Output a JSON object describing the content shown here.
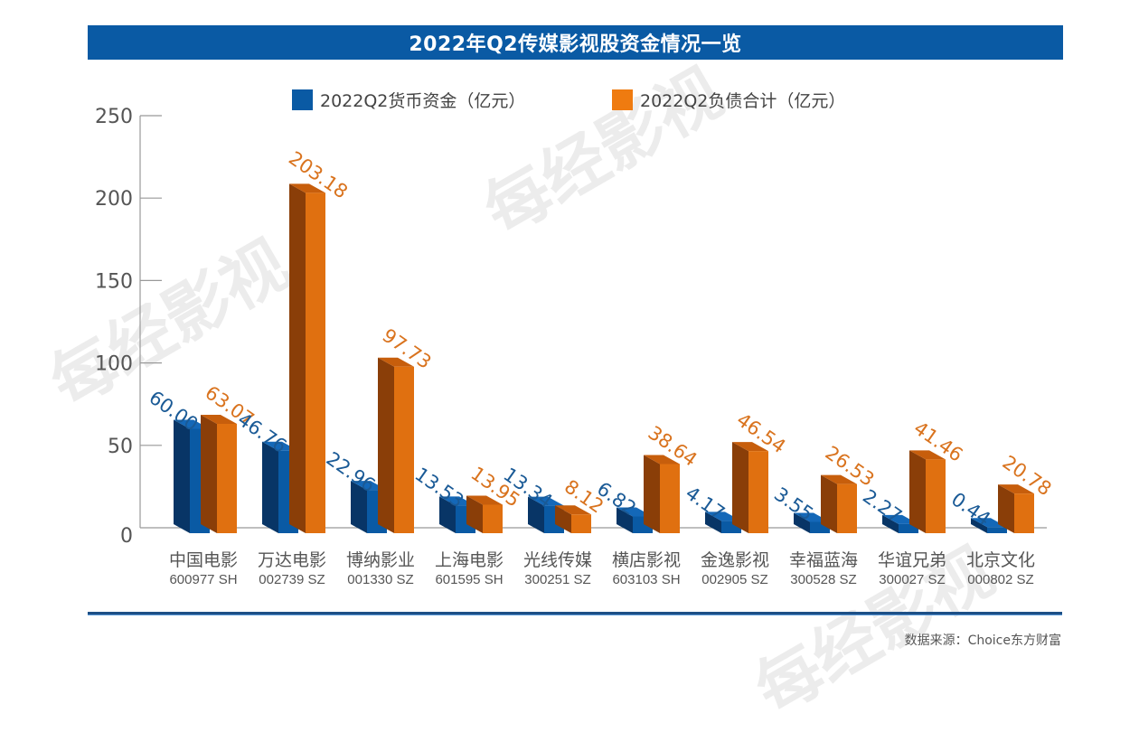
{
  "header": {
    "title": "2022年Q2传媒影视股资金情况一览"
  },
  "watermark": "每经影视",
  "footer": {
    "source": "数据来源：Choice东方财富"
  },
  "colors": {
    "title_bg": "#0a5aa4",
    "series1_front": "#0a5aa4",
    "series1_side": "#083566",
    "series1_top": "#1468b8",
    "series1_label": "#1a5a96",
    "series2_front": "#e07010",
    "series2_side": "#8a3e08",
    "series2_top": "#c75e0c",
    "series2_label": "#d9731e",
    "axis": "#999999",
    "tick_text": "#555555"
  },
  "chart_data": {
    "type": "bar",
    "title": "2022年Q2传媒影视股资金情况一览",
    "xlabel": "",
    "ylabel": "",
    "ylim": [
      0,
      250
    ],
    "yticks": [
      0,
      50,
      100,
      150,
      200,
      250
    ],
    "grid": false,
    "legend_position": "top-center",
    "categories": [
      "中国电影",
      "万达电影",
      "博纳影业",
      "上海电影",
      "光线传媒",
      "横店影视",
      "金逸影视",
      "幸福蓝海",
      "华谊兄弟",
      "北京文化"
    ],
    "codes": [
      "600977 SH",
      "002739 SZ",
      "001330 SZ",
      "601595 SH",
      "300251 SZ",
      "603103 SH",
      "002905 SZ",
      "300528 SZ",
      "300027 SZ",
      "000802 SZ"
    ],
    "series": [
      {
        "name": "2022Q2货币资金（亿元）",
        "values": [
          60.0,
          46.76,
          22.96,
          13.53,
          13.34,
          6.82,
          4.17,
          3.55,
          2.27,
          0.44
        ],
        "labels": [
          "60.00",
          "46.76",
          "22.96",
          "13.53",
          "13.34",
          "6.82",
          "4.17",
          "3.55",
          "2.27",
          "0.44"
        ]
      },
      {
        "name": "2022Q2负债合计（亿元）",
        "values": [
          63.07,
          203.18,
          97.73,
          13.95,
          8.12,
          38.64,
          46.54,
          26.53,
          41.46,
          20.78
        ],
        "labels": [
          "63.07",
          "203.18",
          "97.73",
          "13.95",
          "8.12",
          "38.64",
          "46.54",
          "26.53",
          "41.46",
          "20.78"
        ]
      }
    ]
  }
}
